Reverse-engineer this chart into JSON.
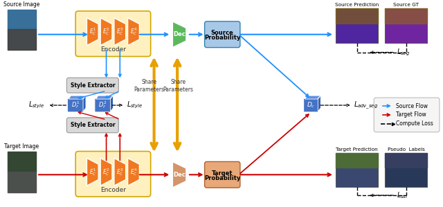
{
  "fig_width": 6.4,
  "fig_height": 2.99,
  "dpi": 100,
  "bg_color": "#ffffff",
  "orange_encoder": "#F07820",
  "orange_bg": "#FFF0C0",
  "green_dec": "#5CB85C",
  "blue_prob": "#A8C8E8",
  "blue_box": "#4472C4",
  "gray_box": "#D8D8D8",
  "salmon_prob": "#E8A878",
  "source_flow_color": "#1E90FF",
  "target_flow_color": "#CC0000",
  "share_arrow_color": "#E8A000",
  "legend_labels": [
    "Source Flow",
    "Target Flow",
    "Compute Loss"
  ]
}
